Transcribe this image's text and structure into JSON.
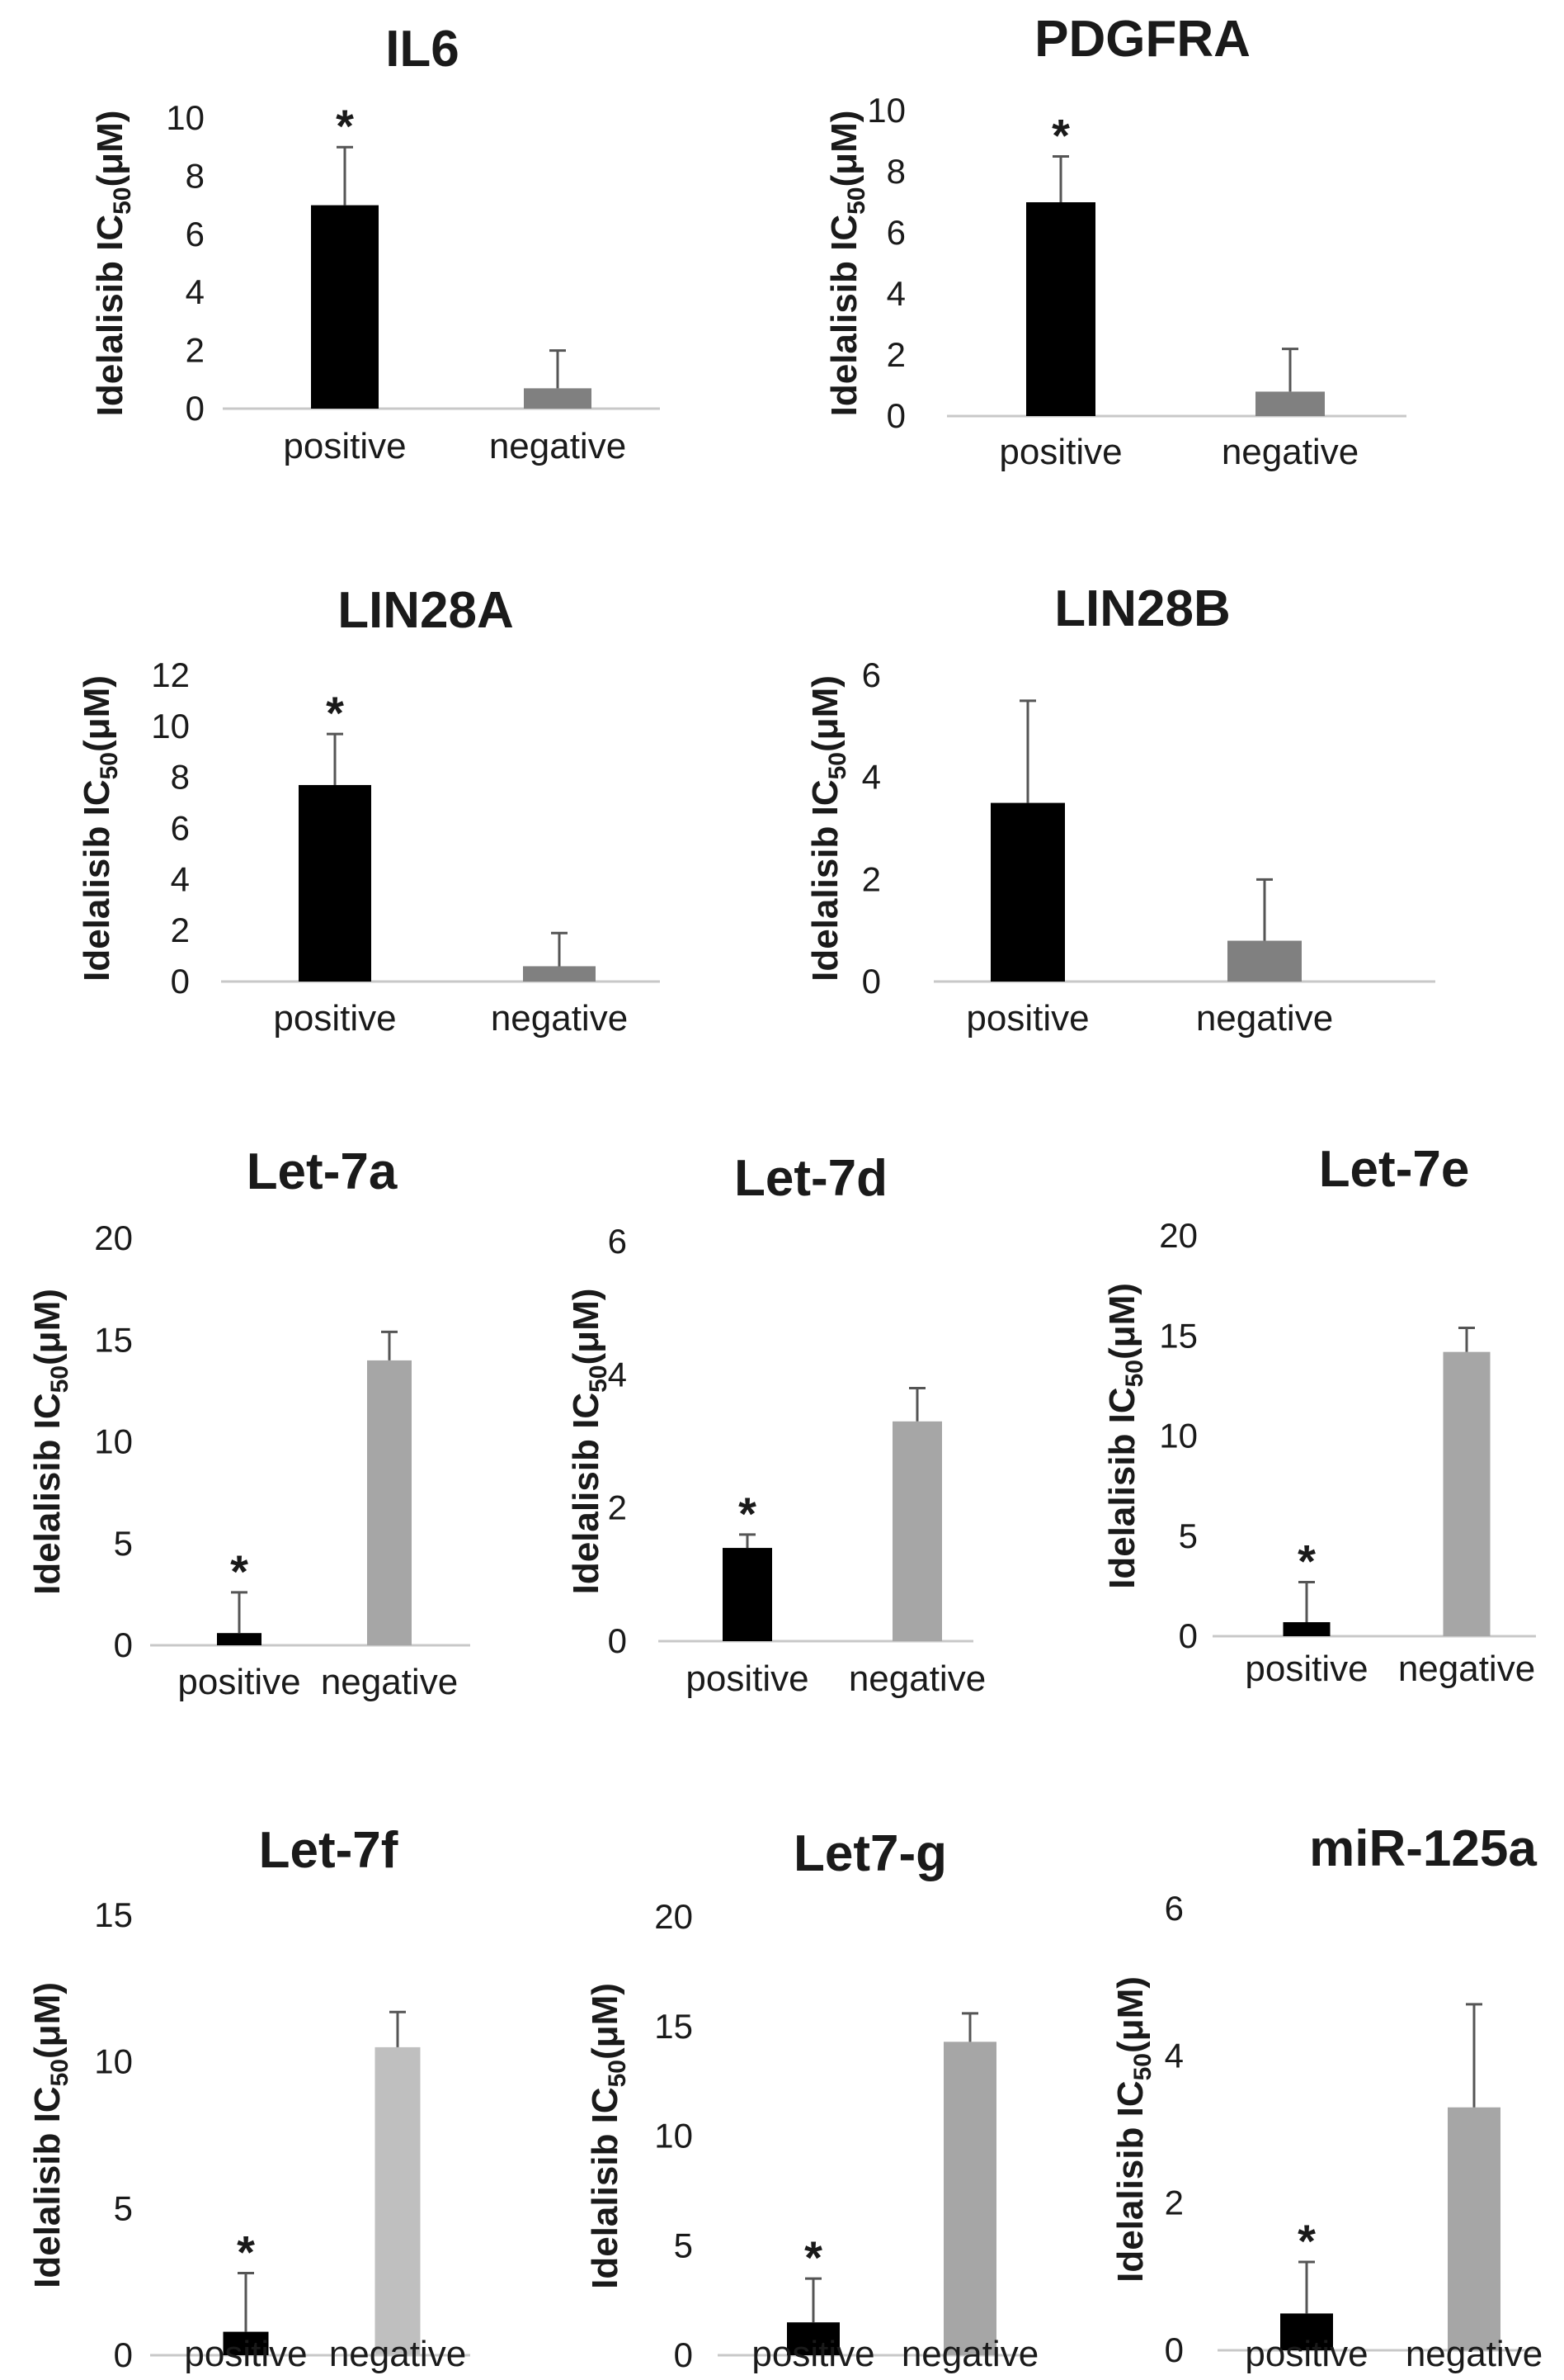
{
  "figure": {
    "ylabel_main": "Idelalisib IC",
    "ylabel_sub": "50",
    "ylabel_unit": "(μM)"
  },
  "chart_data": [
    {
      "type": "bar",
      "title": "IL6",
      "categories": [
        "positive",
        "negative"
      ],
      "values": [
        7.0,
        0.7
      ],
      "errors": [
        2.0,
        1.3
      ],
      "significant": [
        true,
        false
      ],
      "colors": [
        "#000000",
        "#808080"
      ],
      "ylim": [
        0,
        10
      ],
      "yticks": [
        0,
        2,
        4,
        6,
        8,
        10
      ],
      "ylabel": "Idelalisib IC50(μM)"
    },
    {
      "type": "bar",
      "title": "PDGFRA",
      "categories": [
        "positive",
        "negative"
      ],
      "values": [
        7.0,
        0.8
      ],
      "errors": [
        1.5,
        1.4
      ],
      "significant": [
        true,
        false
      ],
      "colors": [
        "#000000",
        "#808080"
      ],
      "ylim": [
        0,
        10
      ],
      "yticks": [
        0,
        2,
        4,
        6,
        8,
        10
      ],
      "ylabel": "Idelalisib IC50(μM)"
    },
    {
      "type": "bar",
      "title": "LIN28A",
      "categories": [
        "positive",
        "negative"
      ],
      "values": [
        7.7,
        0.6
      ],
      "errors": [
        2.0,
        1.3
      ],
      "significant": [
        true,
        false
      ],
      "colors": [
        "#000000",
        "#808080"
      ],
      "ylim": [
        0,
        12
      ],
      "yticks": [
        0,
        2,
        4,
        6,
        8,
        10,
        12
      ],
      "ylabel": "Idelalisib IC50(μM)"
    },
    {
      "type": "bar",
      "title": "LIN28B",
      "categories": [
        "positive",
        "negative"
      ],
      "values": [
        3.5,
        0.8
      ],
      "errors": [
        2.0,
        1.2
      ],
      "significant": [
        false,
        false
      ],
      "colors": [
        "#000000",
        "#808080"
      ],
      "ylim": [
        0,
        6
      ],
      "yticks": [
        0,
        2,
        4,
        6
      ],
      "ylabel": "Idelalisib IC50(μM)"
    },
    {
      "type": "bar",
      "title": "Let-7a",
      "categories": [
        "positive",
        "negative"
      ],
      "values": [
        0.6,
        14.0
      ],
      "errors": [
        2.0,
        1.4
      ],
      "significant": [
        true,
        false
      ],
      "colors": [
        "#000000",
        "#a6a6a6"
      ],
      "ylim": [
        0,
        20
      ],
      "yticks": [
        0,
        5,
        10,
        15,
        20
      ],
      "ylabel": "Idelalisib IC50(μM)"
    },
    {
      "type": "bar",
      "title": "Let-7d",
      "categories": [
        "positive",
        "negative"
      ],
      "values": [
        1.4,
        3.3
      ],
      "errors": [
        0.2,
        0.5
      ],
      "significant": [
        true,
        false
      ],
      "colors": [
        "#000000",
        "#a6a6a6"
      ],
      "ylim": [
        0,
        6
      ],
      "yticks": [
        0,
        2,
        4,
        6
      ],
      "ylabel": "Idelalisib IC50(μM)"
    },
    {
      "type": "bar",
      "title": "Let-7e",
      "categories": [
        "positive",
        "negative"
      ],
      "values": [
        0.7,
        14.2
      ],
      "errors": [
        2.0,
        1.2
      ],
      "significant": [
        true,
        false
      ],
      "colors": [
        "#000000",
        "#a6a6a6"
      ],
      "ylim": [
        0,
        20
      ],
      "yticks": [
        0,
        5,
        10,
        15,
        20
      ],
      "ylabel": "Idelalisib IC50(μM)"
    },
    {
      "type": "bar",
      "title": "Let-7f",
      "categories": [
        "positive",
        "negative"
      ],
      "values": [
        0.8,
        10.5
      ],
      "errors": [
        2.0,
        1.2
      ],
      "significant": [
        true,
        false
      ],
      "colors": [
        "#000000",
        "#bfbfbf"
      ],
      "ylim": [
        0,
        15
      ],
      "yticks": [
        0,
        5,
        10,
        15
      ],
      "ylabel": "Idelalisib IC50(μM)"
    },
    {
      "type": "bar",
      "title": "Let7-g",
      "categories": [
        "positive",
        "negative"
      ],
      "values": [
        1.5,
        14.3
      ],
      "errors": [
        2.0,
        1.3
      ],
      "significant": [
        true,
        false
      ],
      "colors": [
        "#000000",
        "#a6a6a6"
      ],
      "ylim": [
        0,
        20
      ],
      "yticks": [
        0,
        5,
        10,
        15,
        20
      ],
      "ylabel": "Idelalisib IC50(μM)"
    },
    {
      "type": "bar",
      "title": "miR-125a",
      "categories": [
        "positive",
        "negative"
      ],
      "values": [
        0.5,
        3.3
      ],
      "errors": [
        0.7,
        1.4
      ],
      "significant": [
        true,
        false
      ],
      "colors": [
        "#000000",
        "#a6a6a6"
      ],
      "ylim": [
        0,
        6
      ],
      "yticks": [
        0,
        2,
        4,
        6
      ],
      "ylabel": "Idelalisib IC50(μM)"
    }
  ]
}
